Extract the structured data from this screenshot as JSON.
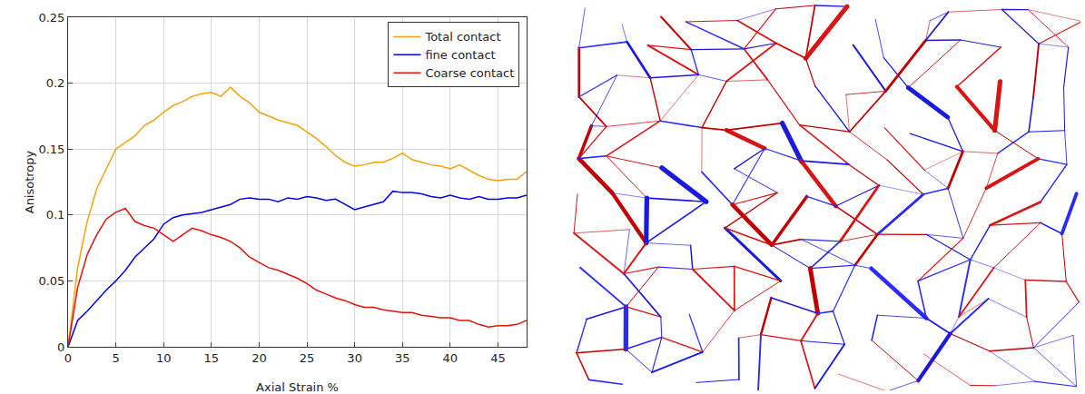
{
  "chart_data": {
    "type": "line",
    "x_label": "Axial Strain %",
    "y_label": "Anisotropy",
    "x": [
      0,
      1,
      2,
      3,
      4,
      5,
      6,
      7,
      8,
      9,
      10,
      11,
      12,
      13,
      14,
      15,
      16,
      17,
      18,
      19,
      20,
      21,
      22,
      23,
      24,
      25,
      26,
      27,
      28,
      29,
      30,
      31,
      32,
      33,
      34,
      35,
      36,
      37,
      38,
      39,
      40,
      41,
      42,
      43,
      44,
      45,
      46,
      47,
      48
    ],
    "series": [
      {
        "name": "Total contact",
        "color": "#f0a30a",
        "values": [
          0,
          0.06,
          0.095,
          0.12,
          0.135,
          0.15,
          0.155,
          0.16,
          0.168,
          0.172,
          0.178,
          0.183,
          0.186,
          0.19,
          0.192,
          0.193,
          0.19,
          0.197,
          0.19,
          0.185,
          0.178,
          0.175,
          0.172,
          0.17,
          0.168,
          0.163,
          0.158,
          0.152,
          0.145,
          0.14,
          0.137,
          0.138,
          0.14,
          0.14,
          0.143,
          0.147,
          0.142,
          0.14,
          0.138,
          0.137,
          0.135,
          0.138,
          0.134,
          0.13,
          0.127,
          0.126,
          0.127,
          0.127,
          0.133
        ]
      },
      {
        "name": "fine contact",
        "color": "#0000ee",
        "values": [
          0,
          0.02,
          0.027,
          0.035,
          0.043,
          0.05,
          0.058,
          0.068,
          0.075,
          0.082,
          0.093,
          0.098,
          0.1,
          0.101,
          0.102,
          0.104,
          0.106,
          0.108,
          0.112,
          0.113,
          0.112,
          0.112,
          0.11,
          0.113,
          0.112,
          0.114,
          0.113,
          0.111,
          0.112,
          0.108,
          0.104,
          0.106,
          0.108,
          0.11,
          0.118,
          0.117,
          0.117,
          0.116,
          0.114,
          0.113,
          0.115,
          0.113,
          0.112,
          0.114,
          0.112,
          0.112,
          0.113,
          0.113,
          0.115
        ]
      },
      {
        "name": "Coarse contact",
        "color": "#e3120b",
        "values": [
          0,
          0.045,
          0.07,
          0.085,
          0.097,
          0.102,
          0.105,
          0.095,
          0.092,
          0.09,
          0.085,
          0.08,
          0.085,
          0.09,
          0.088,
          0.085,
          0.083,
          0.08,
          0.075,
          0.068,
          0.064,
          0.06,
          0.058,
          0.055,
          0.052,
          0.048,
          0.043,
          0.04,
          0.037,
          0.035,
          0.032,
          0.03,
          0.03,
          0.028,
          0.027,
          0.026,
          0.026,
          0.024,
          0.023,
          0.022,
          0.022,
          0.02,
          0.02,
          0.017,
          0.015,
          0.016,
          0.016,
          0.017,
          0.02
        ]
      }
    ],
    "xlim": [
      0,
      48
    ],
    "xticks": [
      0,
      5,
      10,
      15,
      20,
      25,
      30,
      35,
      40,
      45
    ],
    "ylim": [
      0,
      0.25
    ],
    "yticks": [
      0,
      0.05,
      0.1,
      0.15,
      0.2,
      0.25
    ],
    "grid": true,
    "legend": "top-right"
  }
}
